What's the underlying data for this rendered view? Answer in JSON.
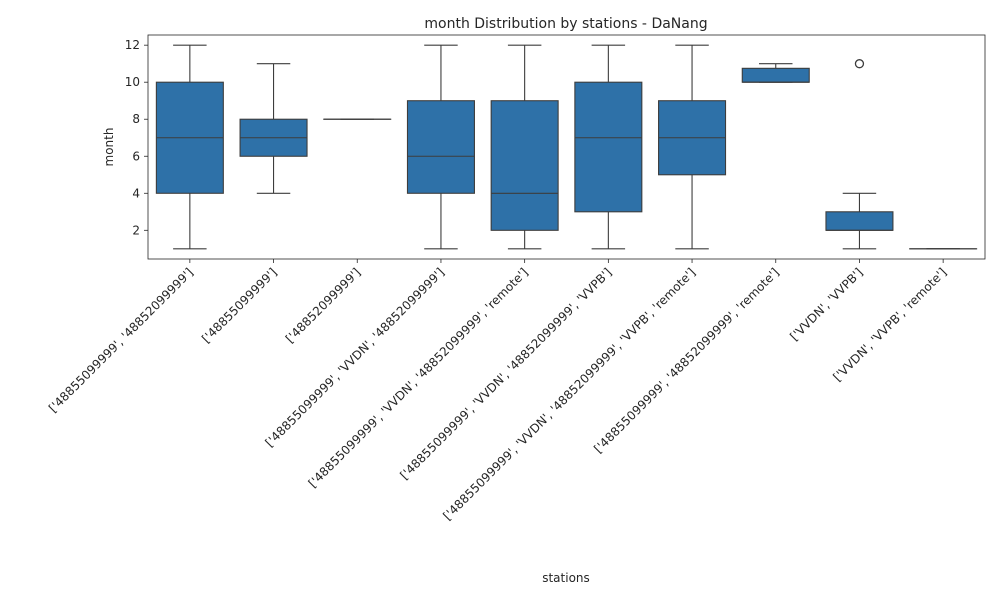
{
  "chart_data": {
    "type": "box",
    "title": "month Distribution by stations - DaNang",
    "xlabel": "stations",
    "ylabel": "month",
    "ylim": [
      0.45,
      12.55
    ],
    "yticks": [
      2,
      4,
      6,
      8,
      10,
      12
    ],
    "box_color": "#2e71a8",
    "line_color": "#3d3d3d",
    "categories": [
      "['48855099999', '48852099999']",
      "['48855099999']",
      "['48852099999']",
      "['48855099999', 'VVDN', '48852099999']",
      "['48855099999', 'VVDN', '48852099999', 'remote']",
      "['48855099999', 'VVDN', '48852099999', 'VVPB']",
      "['48855099999', 'VVDN', '48852099999', 'VVPB', 'remote']",
      "['48855099999', '48852099999', 'remote']",
      "['VVDN', 'VVPB']",
      "['VVDN', 'VVPB', 'remote']"
    ],
    "boxes": [
      {
        "min": 1,
        "q1": 4,
        "median": 7,
        "q3": 10,
        "max": 12,
        "outliers": []
      },
      {
        "min": 4,
        "q1": 6,
        "median": 7,
        "q3": 8,
        "max": 11,
        "outliers": []
      },
      {
        "min": 8,
        "q1": 8,
        "median": 8,
        "q3": 8,
        "max": 8,
        "outliers": []
      },
      {
        "min": 1,
        "q1": 4,
        "median": 6,
        "q3": 9,
        "max": 12,
        "outliers": []
      },
      {
        "min": 1,
        "q1": 2,
        "median": 4,
        "q3": 9,
        "max": 12,
        "outliers": []
      },
      {
        "min": 1,
        "q1": 3,
        "median": 7,
        "q3": 10,
        "max": 12,
        "outliers": []
      },
      {
        "min": 1,
        "q1": 5,
        "median": 7,
        "q3": 9,
        "max": 12,
        "outliers": []
      },
      {
        "min": 10,
        "q1": 10,
        "median": 10,
        "q3": 10.75,
        "max": 11,
        "outliers": []
      },
      {
        "min": 1,
        "q1": 2,
        "median": 2,
        "q3": 3,
        "max": 4,
        "outliers": [
          11
        ]
      },
      {
        "min": 1,
        "q1": 1,
        "median": 1,
        "q3": 1,
        "max": 1,
        "outliers": []
      }
    ]
  }
}
